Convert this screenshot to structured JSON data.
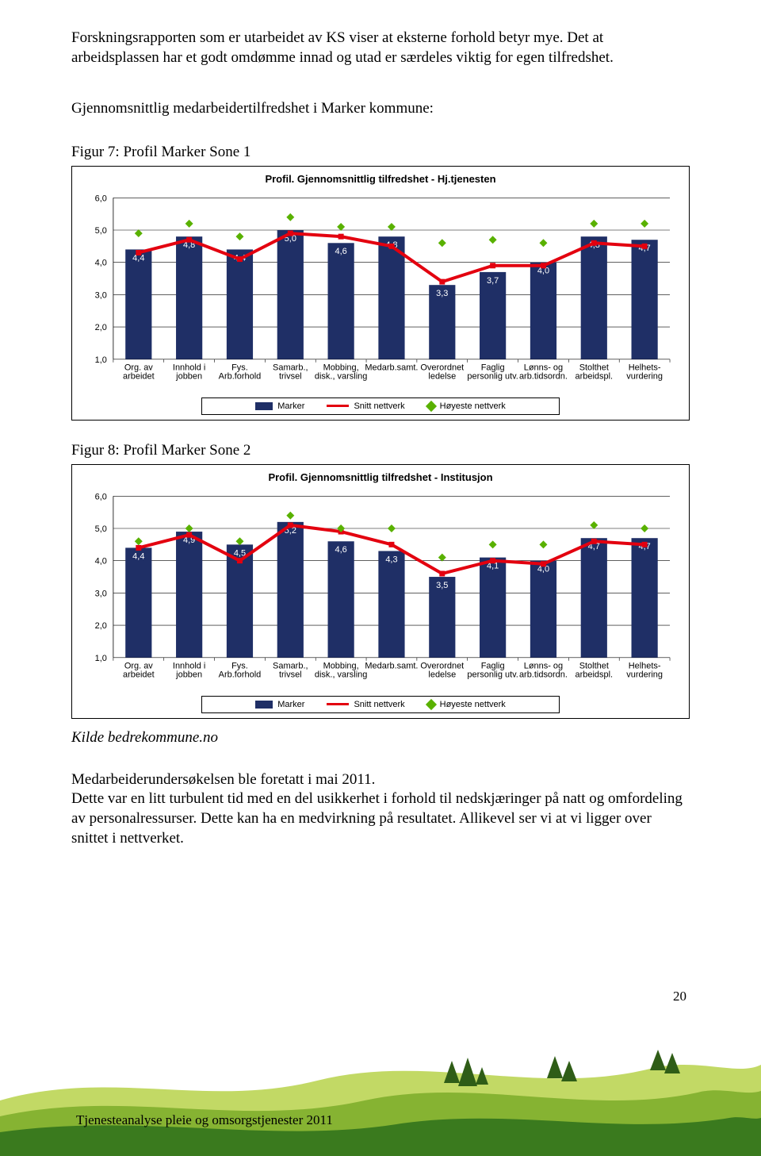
{
  "intro_para": "Forskningsrapporten som er utarbeidet av KS viser at eksterne forhold betyr mye. Det at arbeidsplassen har et godt omdømme innad og utad er særdeles viktig for egen tilfredshet.",
  "section_heading": "Gjennomsnittlig medarbeidertilfredshet i Marker kommune:",
  "fig7_caption": "Figur 7: Profil Marker Sone 1",
  "fig8_caption": "Figur 8: Profil Marker Sone 2",
  "kilde": "Kilde bedrekommune.no",
  "closing_para1": "Medarbeiderundersøkelsen ble foretatt i mai 2011.",
  "closing_para2": "Dette var en litt turbulent tid med en del usikkerhet i forhold til nedskjæringer på natt og omfordeling av personalressurser. Dette kan ha en medvirkning på resultatet. Allikevel ser vi at vi ligger over snittet i nettverket.",
  "page_number": "20",
  "footer_text": "Tjenesteanalyse pleie og omsorgstjenester 2011",
  "chart_common": {
    "categories": [
      [
        "Org. av",
        "arbeidet"
      ],
      [
        "Innhold i",
        "jobben"
      ],
      [
        "Fys.",
        "Arb.forhold"
      ],
      [
        "Samarb.,",
        "trivsel"
      ],
      [
        "Mobbing,",
        "disk., varsling"
      ],
      [
        "Medarb.samt."
      ],
      [
        "Overordnet",
        "ledelse"
      ],
      [
        "Faglig",
        "personlig utv."
      ],
      [
        "Lønns- og",
        "arb.tidsordn."
      ],
      [
        "Stolthet",
        "arbeidspl."
      ],
      [
        "Helhets-",
        "vurdering"
      ]
    ],
    "y_ticks": [
      "1,0",
      "2,0",
      "3,0",
      "4,0",
      "5,0",
      "6,0"
    ],
    "y_min": 1.0,
    "y_max": 6.0,
    "bar_color": "#1f2f66",
    "line_color": "#e3000f",
    "diamond_color": "#59b100",
    "grid_color": "#000000",
    "legend_labels": [
      "Marker",
      "Snitt nettverk",
      "Høyeste nettverk"
    ]
  },
  "chart7": {
    "title": "Profil. Gjennomsnittlig tilfredshet - Hj.tjenesten",
    "bars": [
      4.4,
      4.8,
      4.4,
      5.0,
      4.6,
      4.8,
      3.3,
      3.7,
      4.0,
      4.8,
      4.7
    ],
    "bar_labels": [
      "4,4",
      "4,8",
      "4,4",
      "5,0",
      "4,6",
      "4,8",
      "3,3",
      "3,7",
      "4,0",
      "4,8",
      "4,7"
    ],
    "line": [
      4.3,
      4.7,
      4.1,
      4.9,
      4.8,
      4.5,
      3.4,
      3.9,
      3.9,
      4.6,
      4.5
    ],
    "diamonds": [
      4.9,
      5.2,
      4.8,
      5.4,
      5.1,
      5.1,
      4.6,
      4.7,
      4.6,
      5.2,
      5.2
    ]
  },
  "chart8": {
    "title": "Profil. Gjennomsnittlig tilfredshet - Institusjon",
    "bars": [
      4.4,
      4.9,
      4.5,
      5.2,
      4.6,
      4.3,
      3.5,
      4.1,
      4.0,
      4.7,
      4.7
    ],
    "bar_labels": [
      "4,4",
      "4,9",
      "4,5",
      "5,2",
      "4,6",
      "4,3",
      "3,5",
      "4,1",
      "4,0",
      "4,7",
      "4,7"
    ],
    "line": [
      4.4,
      4.8,
      4.0,
      5.1,
      4.9,
      4.5,
      3.6,
      4.0,
      3.9,
      4.6,
      4.5
    ],
    "diamonds": [
      4.6,
      5.0,
      4.6,
      5.4,
      5.0,
      5.0,
      4.1,
      4.5,
      4.5,
      5.1,
      5.0
    ]
  }
}
